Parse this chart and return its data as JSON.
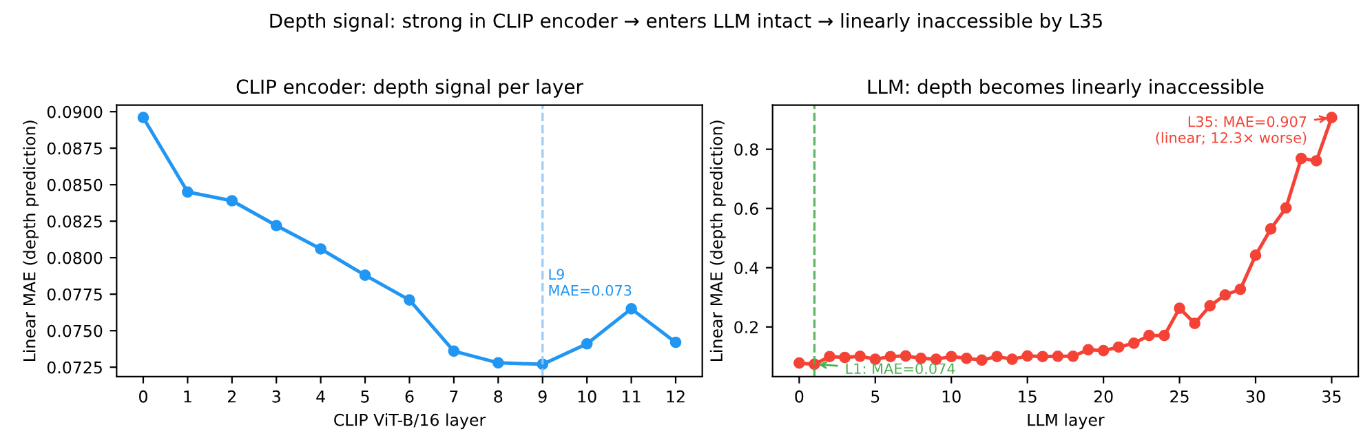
{
  "chart_data": [
    {
      "type": "line",
      "title": "CLIP encoder: depth signal per layer",
      "xlabel": "CLIP ViT-B/16 layer",
      "ylabel": "Linear MAE (depth prediction)",
      "x": [
        0,
        1,
        2,
        3,
        4,
        5,
        6,
        7,
        8,
        9,
        10,
        11,
        12
      ],
      "series": [
        {
          "color": "#2196f3",
          "values": [
            0.0896,
            0.0845,
            0.0839,
            0.0822,
            0.0806,
            0.0788,
            0.0771,
            0.0736,
            0.0728,
            0.0727,
            0.0741,
            0.0765,
            0.0742
          ]
        }
      ],
      "xlim": [
        -0.6,
        12.6
      ],
      "xticks": [
        0,
        1,
        2,
        3,
        4,
        5,
        6,
        7,
        8,
        9,
        10,
        11,
        12
      ],
      "ylim": [
        0.07185,
        0.09045
      ],
      "yticks": [
        {
          "value": 0.0725,
          "label": "0.0725"
        },
        {
          "value": 0.075,
          "label": "0.0750"
        },
        {
          "value": 0.0775,
          "label": "0.0775"
        },
        {
          "value": 0.08,
          "label": "0.0800"
        },
        {
          "value": 0.0825,
          "label": "0.0825"
        },
        {
          "value": 0.085,
          "label": "0.0850"
        },
        {
          "value": 0.0875,
          "label": "0.0875"
        },
        {
          "value": 0.09,
          "label": "0.0900"
        }
      ],
      "ref_lines": [
        {
          "axis": "x",
          "value": 9,
          "color": "#90caf9",
          "line_style": "dashed"
        }
      ],
      "annotations": [
        "Depth signal: strong in CLIP encoder → enters LLM intact → linearly inaccessible by L35",
        {
          "text": "L9\nMAE=0.073",
          "x": 9,
          "y": 0.0772
        }
      ],
      "marker": "circle",
      "grid": false,
      "legend": false
    },
    {
      "type": "line",
      "title": "LLM: depth becomes linearly inaccessible",
      "xlabel": "LLM layer",
      "ylabel": "Linear MAE (depth prediction)",
      "x": [
        0,
        1,
        2,
        3,
        4,
        5,
        6,
        7,
        8,
        9,
        10,
        11,
        12,
        13,
        14,
        15,
        16,
        17,
        18,
        19,
        20,
        21,
        22,
        23,
        24,
        25,
        26,
        27,
        28,
        29,
        30,
        31,
        32,
        33,
        34,
        35
      ],
      "series": [
        {
          "color": "#f44336",
          "values": [
            0.078,
            0.074,
            0.1,
            0.097,
            0.101,
            0.091,
            0.1,
            0.102,
            0.094,
            0.091,
            0.1,
            0.094,
            0.088,
            0.1,
            0.091,
            0.102,
            0.1,
            0.101,
            0.101,
            0.123,
            0.12,
            0.132,
            0.145,
            0.171,
            0.171,
            0.263,
            0.212,
            0.271,
            0.308,
            0.327,
            0.442,
            0.531,
            0.602,
            0.769,
            0.761,
            0.907
          ]
        }
      ],
      "xlim": [
        -1.75,
        36.75
      ],
      "xticks": [
        0,
        5,
        10,
        15,
        20,
        25,
        30,
        35
      ],
      "ylim": [
        0.032,
        0.949
      ],
      "yticks": [
        0.2,
        0.4,
        0.6,
        0.8
      ],
      "ref_lines": [
        {
          "axis": "x",
          "value": 1,
          "color": "#4caf50",
          "line_style": "dashed"
        }
      ],
      "annotations": [
        {
          "text": "L1: MAE=0.074",
          "x": 1,
          "y": 0.074
        },
        {
          "text": "L35: MAE=0.907\n(linear; 12.3× worse)",
          "x": 35,
          "y": 0.907
        }
      ],
      "marker": "circle",
      "grid": false,
      "legend": false
    }
  ]
}
